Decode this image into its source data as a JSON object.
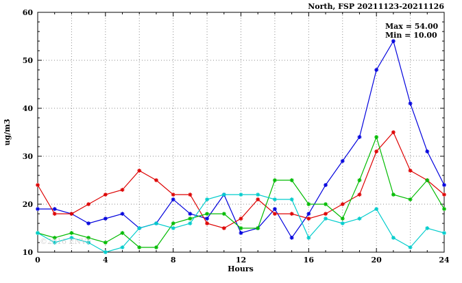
{
  "title": "North, FSP 20211123-20211126",
  "annotations": {
    "max": "Max = 54.00",
    "min": "Min = 10.00"
  },
  "watermark": "©2016 ENVF",
  "chart_data": {
    "type": "line",
    "title": "North, FSP 20211123-20211126",
    "xlabel": "Hours",
    "ylabel": "ug/m3",
    "xlim": [
      0,
      24
    ],
    "ylim": [
      10,
      60
    ],
    "grid": true,
    "legend": "none",
    "xticks": [
      0,
      4,
      8,
      12,
      16,
      20,
      24
    ],
    "yticks": [
      10,
      20,
      30,
      40,
      50,
      60
    ],
    "grid_x": [
      2,
      4,
      6,
      8,
      10,
      12,
      14,
      16,
      18,
      20,
      22
    ],
    "grid_y": [
      20,
      30,
      40,
      50
    ],
    "x": [
      0,
      1,
      2,
      3,
      4,
      5,
      6,
      7,
      8,
      9,
      10,
      11,
      12,
      13,
      14,
      15,
      16,
      17,
      18,
      19,
      20,
      21,
      22,
      23,
      24
    ],
    "series": [
      {
        "name": "series-blue",
        "color": "#0000dd",
        "values": [
          19,
          19,
          18,
          16,
          17,
          18,
          15,
          16,
          21,
          18,
          17,
          22,
          14,
          15,
          19,
          13,
          18,
          24,
          29,
          34,
          48,
          54,
          41,
          31,
          24
        ]
      },
      {
        "name": "series-red",
        "color": "#dd0000",
        "values": [
          24,
          18,
          18,
          20,
          22,
          23,
          27,
          25,
          22,
          22,
          16,
          15,
          17,
          21,
          18,
          18,
          17,
          18,
          20,
          22,
          31,
          35,
          27,
          25,
          22
        ]
      },
      {
        "name": "series-green",
        "color": "#00bb00",
        "values": [
          14,
          13,
          14,
          13,
          12,
          14,
          11,
          11,
          16,
          17,
          18,
          18,
          15,
          15,
          25,
          25,
          20,
          20,
          17,
          25,
          34,
          22,
          21,
          25,
          19
        ]
      },
      {
        "name": "series-cyan",
        "color": "#00cccc",
        "values": [
          14,
          12,
          13,
          12,
          10,
          11,
          15,
          16,
          15,
          16,
          21,
          22,
          22,
          22,
          21,
          21,
          13,
          17,
          16,
          17,
          19,
          13,
          11,
          15,
          14
        ]
      }
    ]
  }
}
